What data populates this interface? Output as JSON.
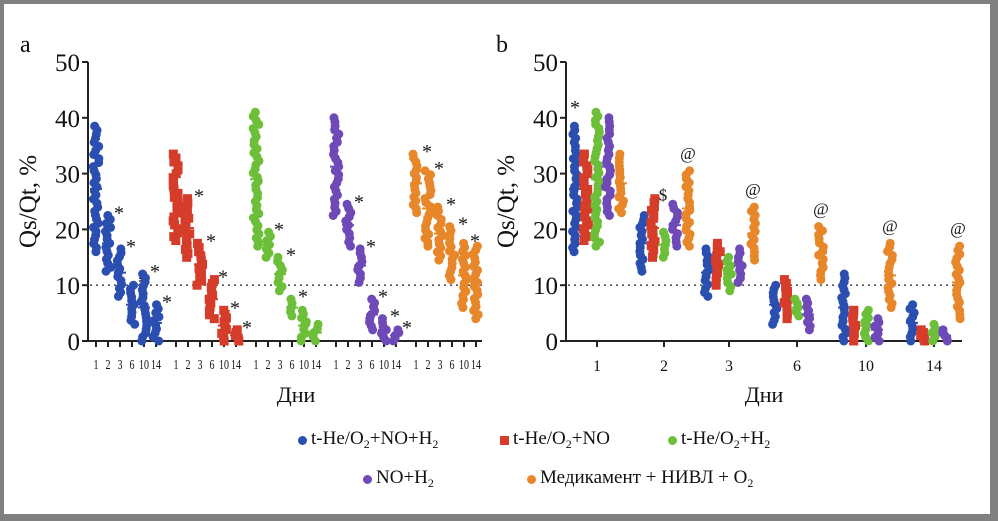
{
  "chart_data": [
    {
      "panel": "a",
      "type": "scatter",
      "subtype": "strip-plot-by-group",
      "title": "",
      "panel_label": "a",
      "ylabel": "Qs/Qt, %",
      "xlabel": "Дни",
      "ylim": [
        0,
        50
      ],
      "yticks": [
        0,
        10,
        20,
        30,
        40,
        50
      ],
      "reference_line": {
        "y": 10,
        "style": "dotted"
      },
      "groups": [
        "t-He/O2+NO+H2",
        "t-He/O2+NO",
        "t-He/O2+H2",
        "NO+H2",
        "Медикамент + НИВЛ + O2"
      ],
      "days": [
        "1",
        "2",
        "3",
        "6",
        "10",
        "14"
      ],
      "series": [
        {
          "name": "t-He/O2+NO+H2",
          "color": "#2a4fb0",
          "marker": "circle",
          "ranges": [
            [
              16,
              38.5
            ],
            [
              12.5,
              22.5
            ],
            [
              8,
              16.5
            ],
            [
              3,
              10
            ],
            [
              0,
              12
            ],
            [
              0,
              6.5
            ]
          ],
          "annotations": [
            "",
            "*",
            "*",
            "*",
            "*",
            "*"
          ]
        },
        {
          "name": "t-He/O2+NO",
          "color": "#d63c2a",
          "marker": "square",
          "ranges": [
            [
              18,
              33.5
            ],
            [
              15,
              25.5
            ],
            [
              10,
              17.5
            ],
            [
              4,
              11
            ],
            [
              0,
              5.5
            ],
            [
              0,
              2
            ]
          ],
          "annotations": [
            "",
            "*",
            "*",
            "*",
            "*",
            "*"
          ]
        },
        {
          "name": "t-He/O2+H2",
          "color": "#6dbf3a",
          "marker": "circle",
          "ranges": [
            [
              17,
              41
            ],
            [
              15,
              19.5
            ],
            [
              9,
              15
            ],
            [
              4.5,
              7.5
            ],
            [
              0,
              5.5
            ],
            [
              0,
              3
            ]
          ],
          "annotations": [
            "",
            "*",
            "*",
            "*",
            "",
            ""
          ]
        },
        {
          "name": "NO+H2",
          "color": "#6e4ab8",
          "marker": "circle",
          "ranges": [
            [
              22.5,
              40
            ],
            [
              17,
              24.5
            ],
            [
              10.5,
              16.5
            ],
            [
              2,
              7.5
            ],
            [
              0,
              4
            ],
            [
              0,
              2
            ]
          ],
          "annotations": [
            "",
            "*",
            "*",
            "*",
            "*",
            "*"
          ]
        },
        {
          "name": "Медикамент + НИВЛ + O2",
          "color": "#e8862a",
          "marker": "circle",
          "ranges": [
            [
              23,
              33.5
            ],
            [
              17,
              30.5
            ],
            [
              14.5,
              24
            ],
            [
              11,
              20.5
            ],
            [
              6,
              17.5
            ],
            [
              4,
              17
            ]
          ],
          "annotations": [
            "*",
            "*",
            "*",
            "*",
            "*",
            ""
          ]
        }
      ]
    },
    {
      "panel": "b",
      "type": "scatter",
      "subtype": "strip-plot-by-day",
      "title": "",
      "panel_label": "b",
      "ylabel": "Qs/Qt, %",
      "xlabel": "Дни",
      "ylim": [
        0,
        50
      ],
      "yticks": [
        0,
        10,
        20,
        30,
        40,
        50
      ],
      "reference_line": {
        "y": 10,
        "style": "dotted"
      },
      "categories": [
        "1",
        "2",
        "3",
        "6",
        "10",
        "14"
      ],
      "series": [
        {
          "name": "t-He/O2+NO+H2",
          "color": "#2a4fb0",
          "marker": "circle",
          "ranges": [
            [
              16,
              38.5
            ],
            [
              12.5,
              22.5
            ],
            [
              8,
              16.5
            ],
            [
              3,
              10
            ],
            [
              0,
              12
            ],
            [
              0,
              6.5
            ]
          ]
        },
        {
          "name": "t-He/O2+NO",
          "color": "#d63c2a",
          "marker": "square",
          "ranges": [
            [
              18,
              33.5
            ],
            [
              15,
              25.5
            ],
            [
              10,
              17.5
            ],
            [
              4,
              11
            ],
            [
              0,
              5.5
            ],
            [
              0,
              2
            ]
          ]
        },
        {
          "name": "t-He/O2+H2",
          "color": "#6dbf3a",
          "marker": "circle",
          "ranges": [
            [
              17,
              41
            ],
            [
              15,
              19.5
            ],
            [
              9,
              15
            ],
            [
              4.5,
              7.5
            ],
            [
              0,
              5.5
            ],
            [
              0,
              3
            ]
          ]
        },
        {
          "name": "NO+H2",
          "color": "#6e4ab8",
          "marker": "circle",
          "ranges": [
            [
              22.5,
              40
            ],
            [
              17,
              24.5
            ],
            [
              10.5,
              16.5
            ],
            [
              2,
              7.5
            ],
            [
              0,
              4
            ],
            [
              0,
              2
            ]
          ]
        },
        {
          "name": "Медикамент + НИВЛ + O2",
          "color": "#e8862a",
          "marker": "circle",
          "ranges": [
            [
              23,
              33.5
            ],
            [
              17,
              30.5
            ],
            [
              14.5,
              24
            ],
            [
              11,
              20.5
            ],
            [
              6,
              17.5
            ],
            [
              4,
              17
            ]
          ]
        }
      ],
      "annotations": [
        {
          "day": "1",
          "text": "*",
          "series": "t-He/O2+NO+H2"
        },
        {
          "day": "2",
          "text": "$",
          "series": "NO+H2"
        },
        {
          "day": "2",
          "text": "@",
          "series": "Медикамент + НИВЛ + O2"
        },
        {
          "day": "3",
          "text": "@",
          "series": "Медикамент + НИВЛ + O2"
        },
        {
          "day": "6",
          "text": "@",
          "series": "Медикамент + НИВЛ + O2"
        },
        {
          "day": "10",
          "text": "@",
          "series": "Медикамент + НИВЛ + O2"
        },
        {
          "day": "14",
          "text": "@",
          "series": "Медикамент + НИВЛ + O2"
        }
      ]
    }
  ],
  "legend": {
    "placement": "bottom-center",
    "items": [
      {
        "label_main": "t-He/O",
        "sub1": "2",
        "label_rest": "+NO+H",
        "sub2": "2",
        "color": "#2a4fb0",
        "marker": "circle"
      },
      {
        "label_main": "t-He/O",
        "sub1": "2",
        "label_rest": "+NO",
        "sub2": "",
        "color": "#d63c2a",
        "marker": "square"
      },
      {
        "label_main": "t-He/O",
        "sub1": "2",
        "label_rest": "+H",
        "sub2": "2",
        "color": "#6dbf3a",
        "marker": "circle"
      },
      {
        "label_main": "NO+H",
        "sub1": "2",
        "label_rest": "",
        "sub2": "",
        "color": "#6e4ab8",
        "marker": "circle"
      },
      {
        "label_main": "Медикамент + НИВЛ + O",
        "sub1": "2",
        "label_rest": "",
        "sub2": "",
        "color": "#e8862a",
        "marker": "circle"
      }
    ]
  }
}
